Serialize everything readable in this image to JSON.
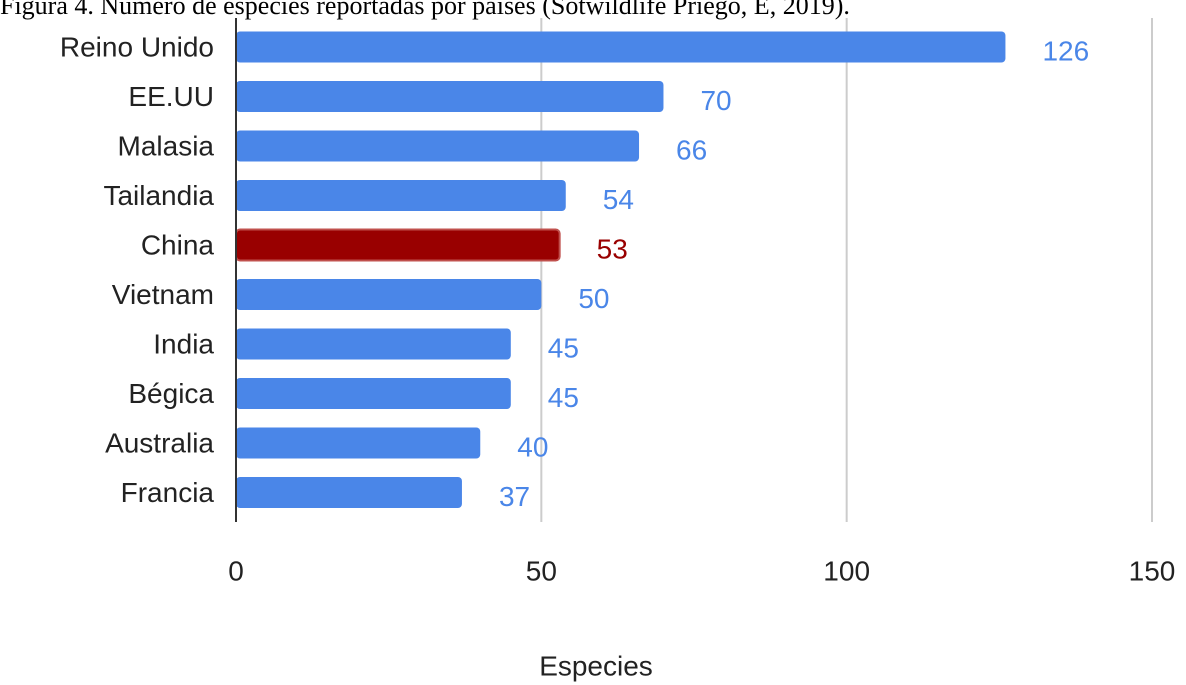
{
  "figure_caption": "Figura 4. Número de especies reportadas por países (Sotwildlife Priego, E, 2019).",
  "colors": {
    "bar": "#4a86e8",
    "highlight": "#990000",
    "highlight_stroke": "#c0504d",
    "grid": "#cccccc",
    "axis": "#333333"
  },
  "chart_data": {
    "type": "bar",
    "orientation": "horizontal",
    "categories": [
      "Reino Unido",
      "EE.UU",
      "Malasia",
      "Tailandia",
      "China",
      "Vietnam",
      "India",
      "Bégica",
      "Australia",
      "Francia"
    ],
    "values": [
      126,
      70,
      66,
      54,
      53,
      50,
      45,
      45,
      40,
      37
    ],
    "value_labels": [
      "126",
      "70",
      "66",
      "54",
      "53",
      "50",
      "45",
      "45",
      "40",
      "37"
    ],
    "highlighted_category": "China",
    "xlabel": "Especies",
    "ylabel": "",
    "xlim": [
      0,
      150
    ],
    "x_ticks": [
      0,
      50,
      100,
      150
    ],
    "x_tick_labels": [
      "0",
      "50",
      "100",
      "150"
    ],
    "grid": true,
    "legend": "none"
  }
}
